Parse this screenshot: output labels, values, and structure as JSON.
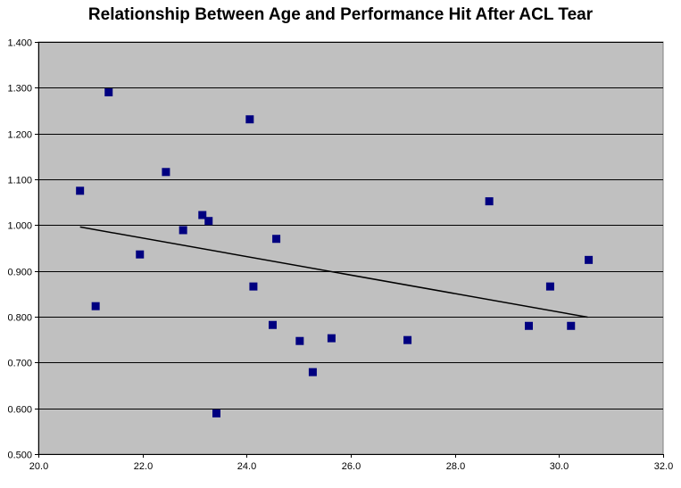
{
  "chart_data": {
    "type": "scatter",
    "title": "Relationship Between Age and Performance Hit After ACL Tear",
    "xlabel": "",
    "ylabel": "",
    "xlim": [
      20.0,
      32.0
    ],
    "ylim": [
      0.5,
      1.4
    ],
    "x_ticks": [
      "20.0",
      "22.0",
      "24.0",
      "26.0",
      "28.0",
      "30.0",
      "32.0"
    ],
    "y_ticks": [
      "0.500",
      "0.600",
      "0.700",
      "0.800",
      "0.900",
      "1.000",
      "1.100",
      "1.200",
      "1.300",
      "1.400"
    ],
    "grid": "horizontal",
    "legend": "none",
    "colors": {
      "plot_background": "#c0c0c0",
      "marker": "#000080",
      "trendline": "#000000",
      "gridline": "#000000"
    },
    "series": [
      {
        "points": [
          {
            "x": 20.8,
            "y": 1.075
          },
          {
            "x": 21.1,
            "y": 0.823
          },
          {
            "x": 21.35,
            "y": 1.29
          },
          {
            "x": 21.95,
            "y": 0.936
          },
          {
            "x": 22.45,
            "y": 1.116
          },
          {
            "x": 22.78,
            "y": 0.989
          },
          {
            "x": 23.15,
            "y": 1.022
          },
          {
            "x": 23.27,
            "y": 1.009
          },
          {
            "x": 23.42,
            "y": 0.589
          },
          {
            "x": 24.06,
            "y": 1.231
          },
          {
            "x": 24.13,
            "y": 0.866
          },
          {
            "x": 24.5,
            "y": 0.782
          },
          {
            "x": 24.57,
            "y": 0.97
          },
          {
            "x": 25.02,
            "y": 0.747
          },
          {
            "x": 25.27,
            "y": 0.679
          },
          {
            "x": 25.63,
            "y": 0.753
          },
          {
            "x": 27.09,
            "y": 0.749
          },
          {
            "x": 28.66,
            "y": 1.052
          },
          {
            "x": 29.42,
            "y": 0.78
          },
          {
            "x": 29.83,
            "y": 0.866
          },
          {
            "x": 30.23,
            "y": 0.78
          },
          {
            "x": 30.57,
            "y": 0.924
          }
        ]
      }
    ],
    "trendline": {
      "x": [
        20.8,
        30.55
      ],
      "y": [
        0.996,
        0.799
      ]
    }
  }
}
